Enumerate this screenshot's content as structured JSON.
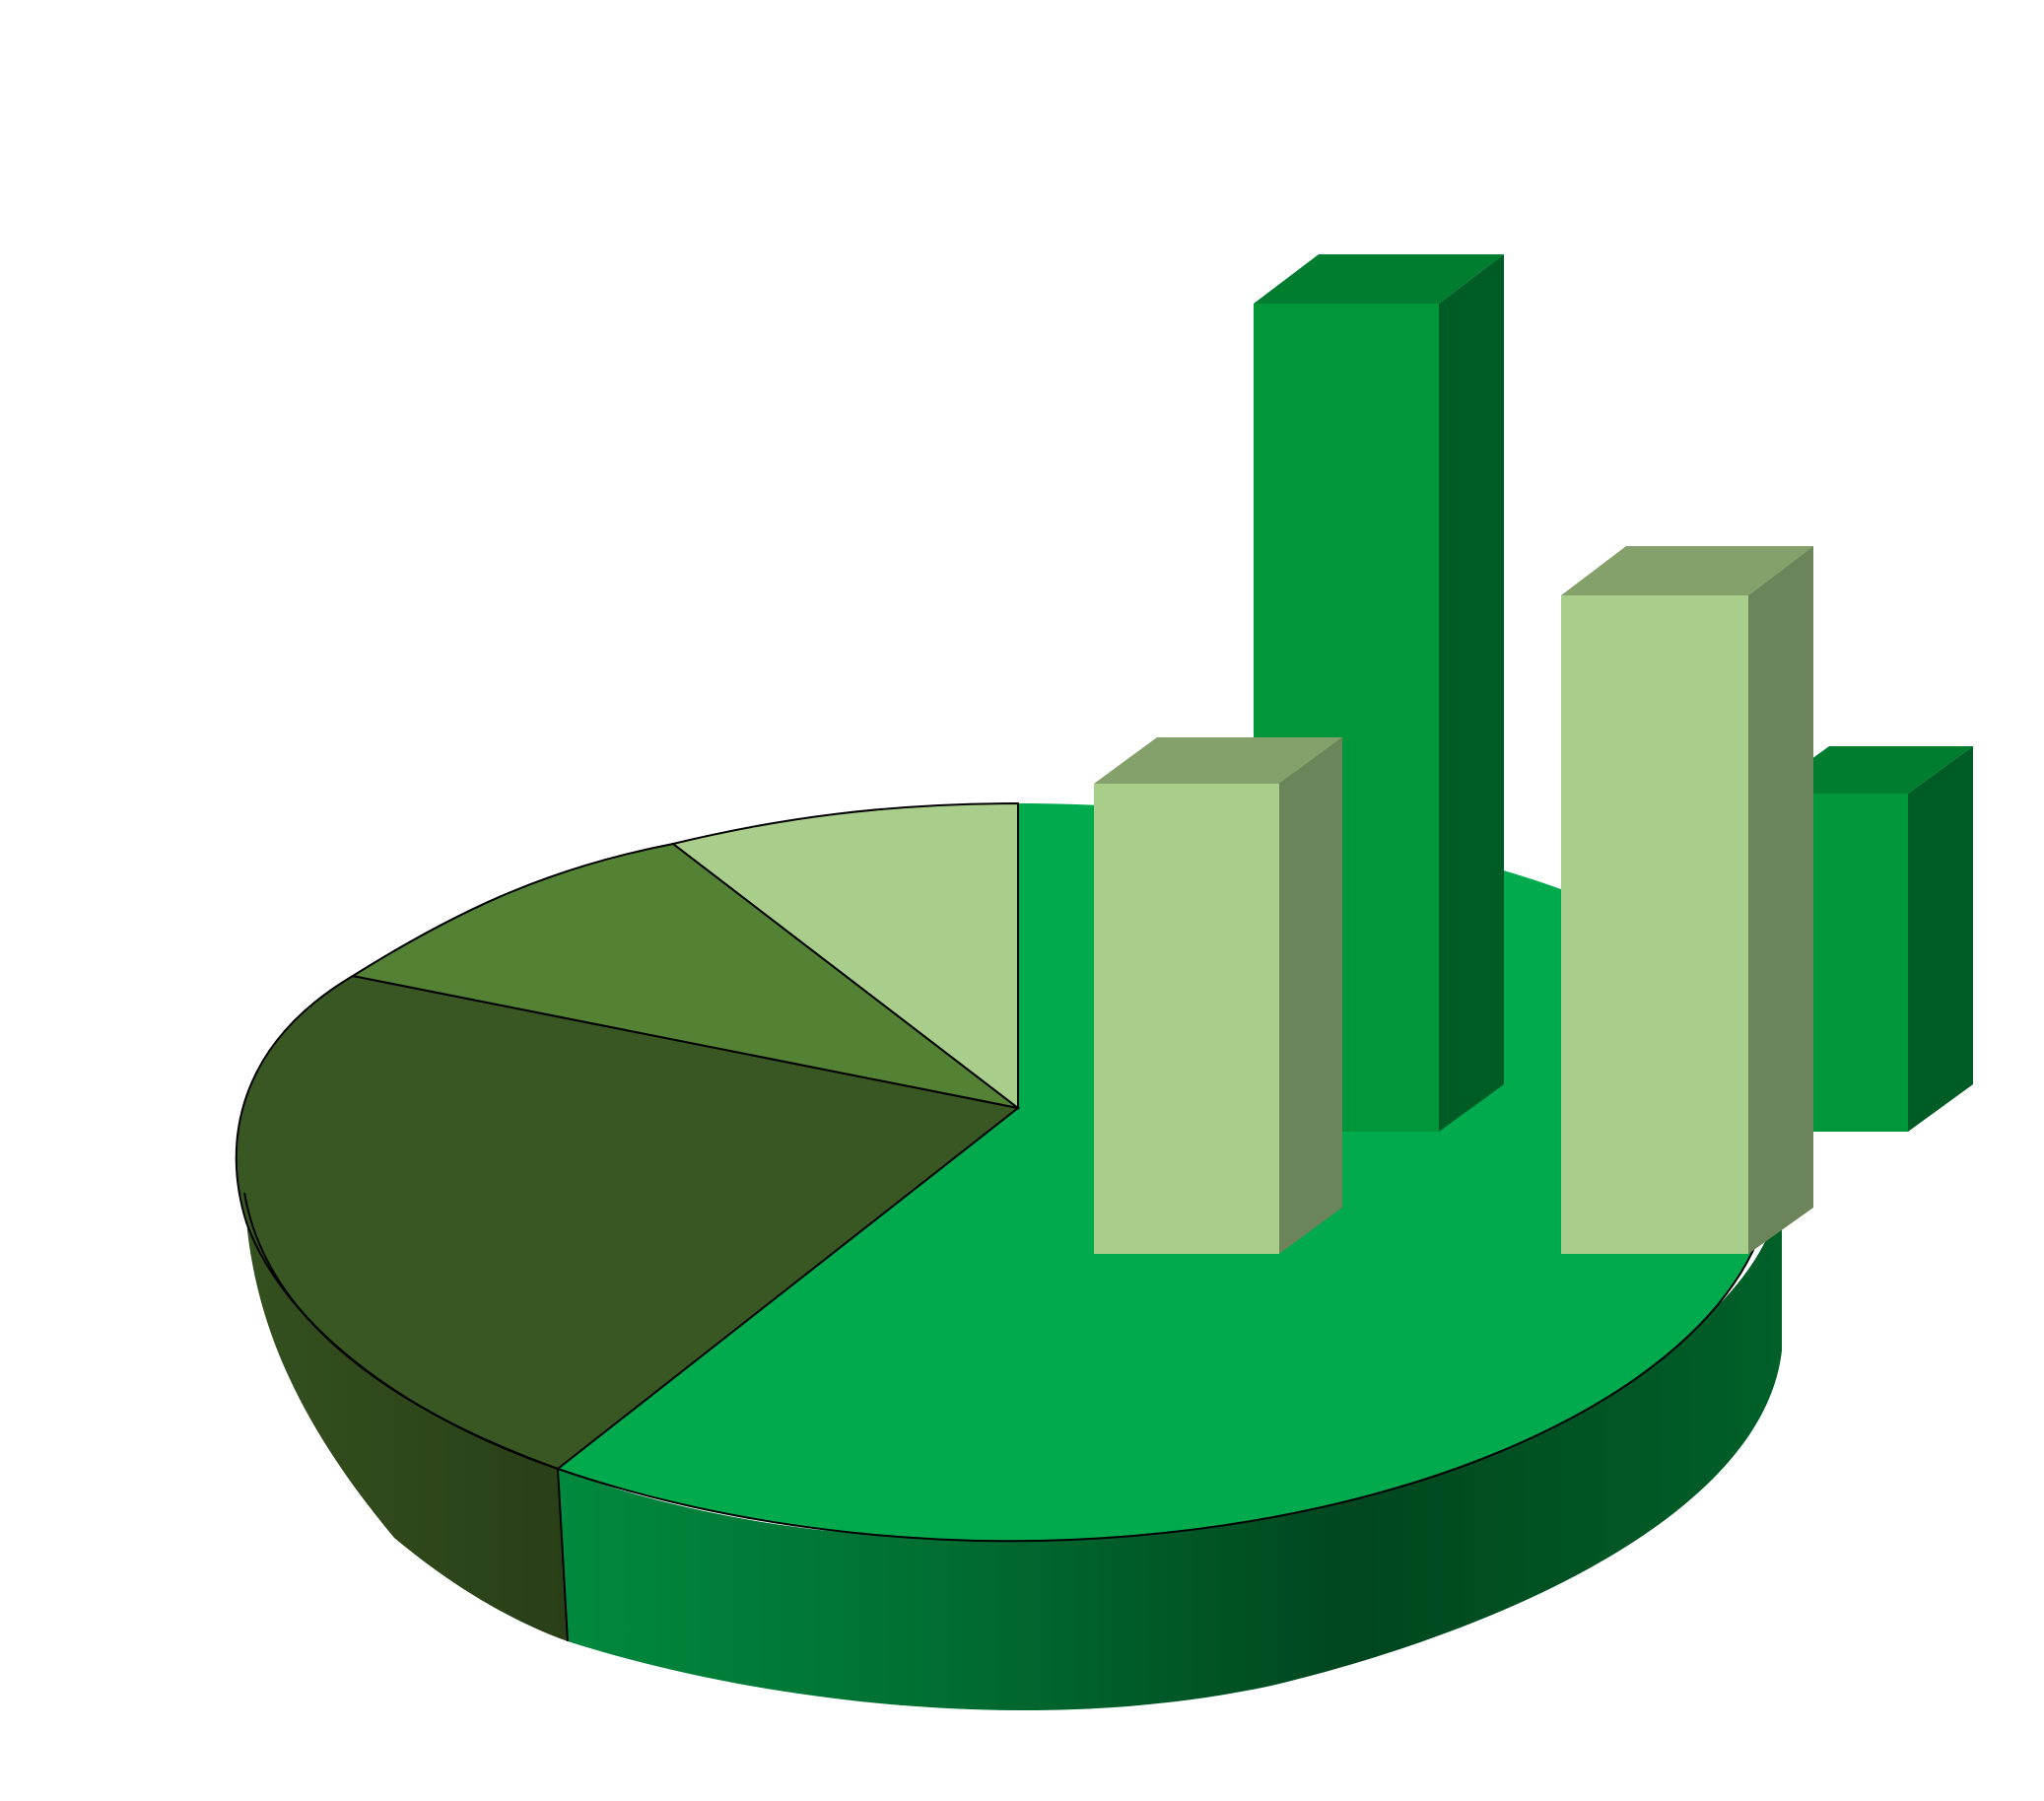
{
  "illustration": {
    "kind": "decorative 3d pie chart with 3d bars",
    "palette": {
      "background": "#ffffff",
      "pie_main_top": "#00aa4d",
      "pie_main_side": "#006b30",
      "pie_dark_top": "#385723",
      "pie_dark_side": "#2b431a",
      "pie_mid_top": "#548235",
      "pie_light_top": "#a9d08e",
      "bar_green_front": "#00963a",
      "bar_green_top": "#007d2f",
      "bar_green_side": "#005c25",
      "bar_light_front": "#a9cd8b",
      "bar_light_top": "#84a06b",
      "bar_light_side": "#6c8459",
      "outline": "#000000"
    },
    "pie_slices": [
      {
        "name": "light-green-slice",
        "share": 0.1,
        "color_key": "pie_light_top"
      },
      {
        "name": "mid-green-slice",
        "share": 0.14,
        "color_key": "pie_mid_top"
      },
      {
        "name": "dark-green-slice",
        "share": 0.26,
        "color_key": "pie_dark_top"
      },
      {
        "name": "bright-green-slice",
        "share": 0.5,
        "color_key": "pie_main_top"
      }
    ],
    "bars": [
      {
        "name": "bar-light-left",
        "relative_height": 0.53,
        "color": "light"
      },
      {
        "name": "bar-green-tall",
        "relative_height": 1.0,
        "color": "green"
      },
      {
        "name": "bar-light-right",
        "relative_height": 0.73,
        "color": "light"
      },
      {
        "name": "bar-green-short",
        "relative_height": 0.38,
        "color": "green"
      }
    ]
  }
}
